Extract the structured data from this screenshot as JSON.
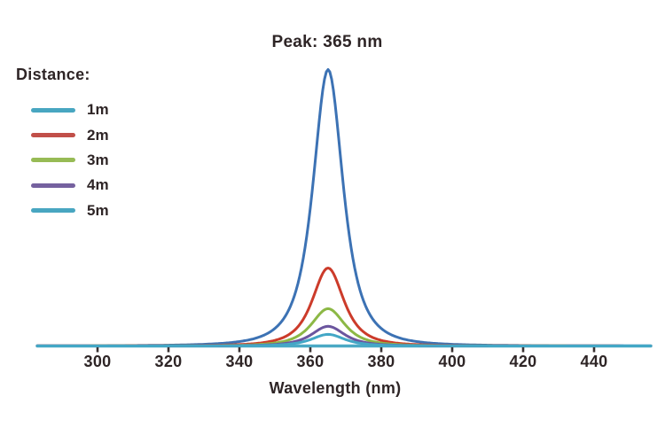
{
  "title": "Peak: 365 nm",
  "legend": {
    "title": "Distance:"
  },
  "x_axis": {
    "label": "Wavelength (nm)"
  },
  "colors": {
    "text": "#2e2526",
    "tick_mark": "#393132",
    "background": "#ffffff",
    "baseline": "#4ba9c5"
  },
  "chart_data": {
    "type": "line",
    "title": "Peak: 365 nm",
    "xlabel": "Wavelength (nm)",
    "ylabel": "",
    "x_ticks": [
      300,
      320,
      340,
      360,
      380,
      400,
      420,
      440
    ],
    "x_range_nm": [
      283,
      456
    ],
    "peak_nm": 365,
    "grid": false,
    "legend_title": "Distance:",
    "legend_position": "top-left",
    "y_axis_shown": false,
    "baseline_color": "#4ba9c5",
    "series": [
      {
        "name": "1m",
        "peak_relative_intensity": 1.0,
        "approx_fwhm_nm": 10.0,
        "color": "#3c72b4",
        "swatch_color": "#48a6c1"
      },
      {
        "name": "2m",
        "peak_relative_intensity": 0.282,
        "approx_fwhm_nm": 10.5,
        "color": "#cc3b2a",
        "swatch_color": "#c14f49"
      },
      {
        "name": "3m",
        "peak_relative_intensity": 0.135,
        "approx_fwhm_nm": 11.0,
        "color": "#8cb845",
        "swatch_color": "#97bb55"
      },
      {
        "name": "4m",
        "peak_relative_intensity": 0.071,
        "approx_fwhm_nm": 11.0,
        "color": "#6b559e",
        "swatch_color": "#75619f"
      },
      {
        "name": "5m",
        "peak_relative_intensity": 0.042,
        "approx_fwhm_nm": 11.0,
        "color": "#43a7c6",
        "swatch_color": "#48a6c1"
      }
    ]
  }
}
